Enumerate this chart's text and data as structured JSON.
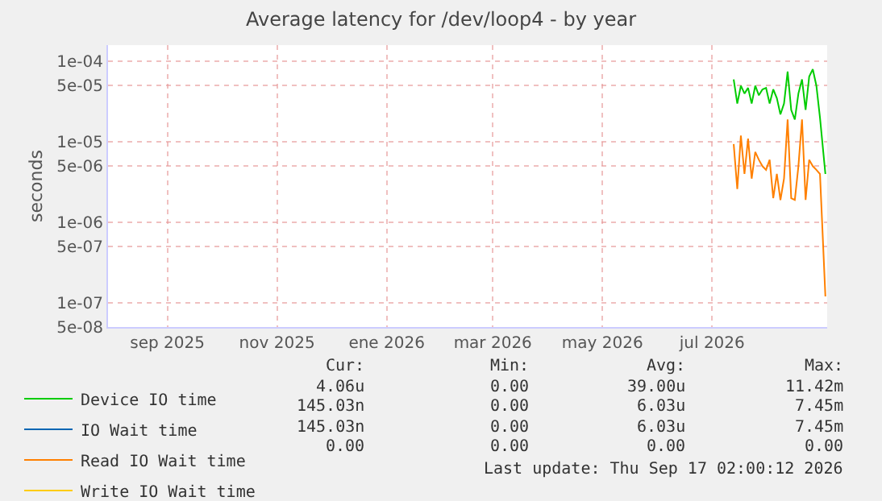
{
  "chart_data": {
    "type": "line",
    "title": "Average latency for /dev/loop4 - by year",
    "ylabel": "seconds",
    "x": [
      "2026-07-27",
      "2026-07-29",
      "2026-07-31",
      "2026-08-02",
      "2026-08-04",
      "2026-08-06",
      "2026-08-08",
      "2026-08-10",
      "2026-08-12",
      "2026-08-14",
      "2026-08-16",
      "2026-08-18",
      "2026-08-20",
      "2026-08-22",
      "2026-08-24",
      "2026-08-26",
      "2026-08-28",
      "2026-08-30",
      "2026-09-01",
      "2026-09-03",
      "2026-09-05",
      "2026-09-07",
      "2026-09-09",
      "2026-09-11",
      "2026-09-13",
      "2026-09-16"
    ],
    "series": [
      {
        "name": "Device IO time",
        "color": "#00cc00",
        "values": [
          6e-05,
          3e-05,
          5e-05,
          4e-05,
          4.7e-05,
          3e-05,
          5e-05,
          3.8e-05,
          4.5e-05,
          4.7e-05,
          3e-05,
          4.5e-05,
          3.5e-05,
          2.2e-05,
          3e-05,
          7.5e-05,
          2.5e-05,
          1.9e-05,
          4e-05,
          6e-05,
          2.5e-05,
          6.5e-05,
          8e-05,
          5e-05,
          2e-05,
          4e-06
        ]
      },
      {
        "name": "IO Wait time",
        "color": "#0066b3",
        "values": [
          null,
          null,
          null,
          null,
          null,
          null,
          null,
          null,
          null,
          null,
          null,
          null,
          null,
          null,
          null,
          null,
          null,
          null,
          null,
          null,
          null,
          null,
          null,
          null,
          null,
          null
        ]
      },
      {
        "name": "Read IO Wait time",
        "color": "#ff8000",
        "values": [
          9.4e-06,
          2.6e-06,
          1.2e-05,
          4e-06,
          1.1e-05,
          3.5e-06,
          7.5e-06,
          6e-06,
          5e-06,
          4.5e-06,
          6e-06,
          2e-06,
          4e-06,
          1.9e-06,
          3.5e-06,
          1.9e-05,
          2e-06,
          1.9e-06,
          5e-06,
          1.9e-05,
          1.9e-06,
          6e-06,
          5e-06,
          4.5e-06,
          4e-06,
          1.2e-07
        ]
      },
      {
        "name": "Write IO Wait time",
        "color": "#ffcc00",
        "values": [
          null,
          null,
          null,
          null,
          null,
          null,
          null,
          null,
          null,
          null,
          null,
          null,
          null,
          null,
          null,
          null,
          null,
          null,
          null,
          null,
          null,
          null,
          null,
          null,
          null,
          null
        ]
      }
    ],
    "log": "y",
    "ylim": [
      5e-08,
      0.00016
    ],
    "yticks": [
      {
        "value": 0.0001,
        "label": "1e-04"
      },
      {
        "value": 5e-05,
        "label": "5e-05"
      },
      {
        "value": 1e-05,
        "label": "1e-05"
      },
      {
        "value": 5e-06,
        "label": "5e-06"
      },
      {
        "value": 1e-06,
        "label": "1e-06"
      },
      {
        "value": 5e-07,
        "label": "5e-07"
      },
      {
        "value": 1e-07,
        "label": "1e-07"
      },
      {
        "value": 5e-08,
        "label": "5e-08"
      }
    ],
    "xlim": [
      "2025-08-13",
      "2026-09-17"
    ],
    "xticks": [
      {
        "value": "2025-09-15",
        "label": "sep 2025"
      },
      {
        "value": "2025-11-15",
        "label": "nov 2025"
      },
      {
        "value": "2026-01-15",
        "label": "ene 2026"
      },
      {
        "value": "2026-03-15",
        "label": "mar 2026"
      },
      {
        "value": "2026-05-15",
        "label": "may 2026"
      },
      {
        "value": "2026-07-15",
        "label": "jul 2026"
      }
    ],
    "grid": true,
    "legend": "bottom left",
    "marker": "none",
    "line_style": "solid",
    "annotations": [
      "Cur:",
      "Min:",
      "Avg:",
      "Max:",
      "4.06u",
      "0.00",
      "39.00u",
      "11.42m",
      "145.03n",
      "0.00",
      "6.03u",
      "7.45m",
      "145.03n",
      "0.00",
      "6.03u",
      "7.45m",
      "0.00",
      "0.00",
      "0.00",
      "0.00",
      "Last update: Thu Sep 17 02:00:12 2026"
    ]
  }
}
